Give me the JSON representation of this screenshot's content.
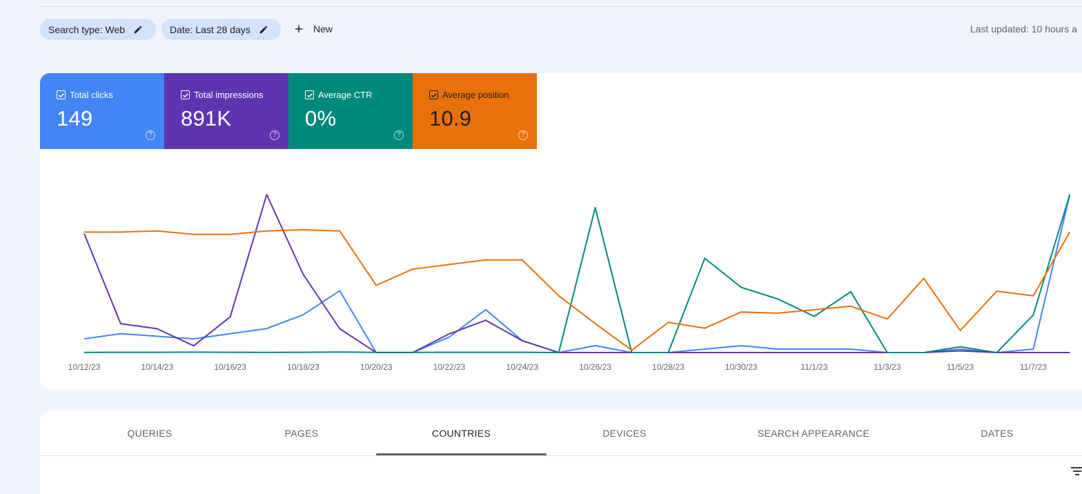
{
  "filters": {
    "search_type": "Search type: Web",
    "date": "Date: Last 28 days",
    "new_label": "New",
    "icons": {
      "edit": "pencil-icon",
      "add": "plus-icon"
    }
  },
  "last_updated": "Last updated: 10 hours a",
  "metrics": [
    {
      "id": "clicks",
      "label": "Total clicks",
      "value": "149",
      "color": "#4285f4",
      "checked": true
    },
    {
      "id": "impressions",
      "label": "Total impressions",
      "value": "891K",
      "color": "#5e35b1",
      "checked": true
    },
    {
      "id": "ctr",
      "label": "Average CTR",
      "value": "0%",
      "color": "#00897b",
      "checked": true
    },
    {
      "id": "position",
      "label": "Average position",
      "value": "10.9",
      "color": "#e8710a",
      "checked": true
    }
  ],
  "chart_data": {
    "type": "line",
    "x": [
      "10/12/23",
      "10/13/23",
      "10/14/23",
      "10/15/23",
      "10/16/23",
      "10/17/23",
      "10/18/23",
      "10/19/23",
      "10/20/23",
      "10/21/23",
      "10/22/23",
      "10/23/23",
      "10/24/23",
      "10/25/23",
      "10/26/23",
      "10/27/23",
      "10/28/23",
      "10/29/23",
      "10/30/23",
      "10/31/23",
      "11/1/23",
      "11/2/23",
      "11/3/23",
      "11/4/23",
      "11/5/23",
      "11/6/23",
      "11/7/23",
      "11/8/23"
    ],
    "tick_labels": [
      "10/12/23",
      "10/14/23",
      "10/16/23",
      "10/18/23",
      "10/20/23",
      "10/22/23",
      "10/24/23",
      "10/26/23",
      "10/28/23",
      "10/30/23",
      "11/1/23",
      "11/3/23",
      "11/5/23",
      "11/7/23"
    ],
    "grid": false,
    "axes_visible": false,
    "series": [
      {
        "key": "clicks",
        "color": "#4285f4",
        "values": [
          8,
          11,
          9.5,
          8,
          11,
          14,
          22,
          36,
          0,
          0,
          9,
          25,
          7,
          0,
          4,
          0,
          0,
          2,
          4,
          2,
          2,
          2,
          0,
          0,
          2,
          0,
          2,
          92
        ]
      },
      {
        "key": "impressions",
        "color": "#5e35b1",
        "values": [
          70,
          17,
          14,
          4,
          21,
          93,
          46,
          14,
          0,
          0,
          11,
          19,
          7,
          0,
          0,
          0,
          0,
          0,
          0,
          0,
          0,
          0,
          0,
          0,
          1,
          0,
          0,
          0
        ]
      },
      {
        "key": "ctr",
        "color": "#00897b",
        "values": [
          0.1,
          0.2,
          0.2,
          0.3,
          0.2,
          0.1,
          0.2,
          0.4,
          0.1,
          0.1,
          0.2,
          0.2,
          0.2,
          0,
          100,
          0,
          0,
          65,
          45,
          37,
          25,
          42,
          0,
          0,
          4,
          0,
          26,
          109
        ]
      },
      {
        "key": "position",
        "color": "#e8710a",
        "values": [
          13,
          13,
          12.9,
          13.2,
          13.2,
          12.9,
          12.8,
          12.9,
          17.6,
          16.2,
          15.8,
          15.4,
          15.4,
          18.5,
          20.9,
          23.2,
          20.8,
          21.3,
          19.9,
          20,
          19.7,
          19.4,
          20.5,
          17,
          21.5,
          18.1,
          18.5,
          13
        ]
      }
    ]
  },
  "tabs": [
    {
      "label": "QUERIES",
      "active": false
    },
    {
      "label": "PAGES",
      "active": false
    },
    {
      "label": "COUNTRIES",
      "active": true
    },
    {
      "label": "DEVICES",
      "active": false
    },
    {
      "label": "SEARCH APPEARANCE",
      "active": false
    },
    {
      "label": "DATES",
      "active": false
    }
  ],
  "table_tools": {
    "filter_icon": "filter-icon"
  }
}
